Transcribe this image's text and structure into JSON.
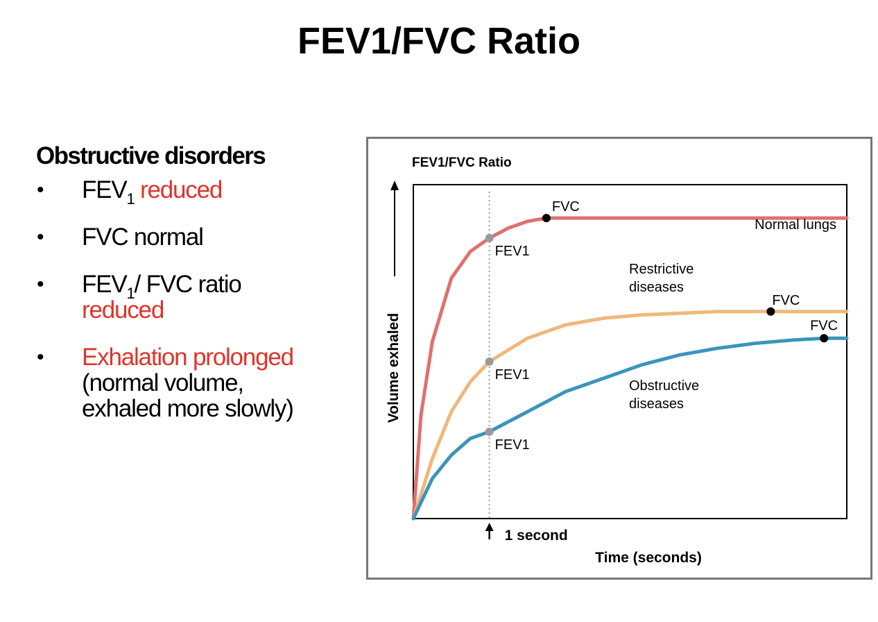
{
  "slide": {
    "title": "FEV1/FVC Ratio"
  },
  "bullets": {
    "heading": "Obstructive disorders",
    "items": [
      {
        "parts": [
          {
            "text": "FEV"
          },
          {
            "sub": "1"
          },
          {
            "text": " reduced",
            "red": true
          }
        ]
      },
      {
        "parts": [
          {
            "text": "FVC normal"
          }
        ]
      },
      {
        "parts": [
          {
            "text": "FEV"
          },
          {
            "sub": "1"
          },
          {
            "text": "/ FVC ratio "
          },
          {
            "text": "reduced",
            "red": true,
            "block": true
          }
        ]
      },
      {
        "parts": [
          {
            "text": "Exhalation prolonged",
            "red": true,
            "block": true
          },
          {
            "text": "(normal volume,",
            "block": true
          },
          {
            "text": "exhaled more slowly)",
            "block": true
          }
        ]
      }
    ]
  },
  "chart_data": {
    "type": "line",
    "title": "FEV1/FVC Ratio",
    "xlabel": "Time (seconds)",
    "ylabel": "Volume exhaled",
    "one_second_label": "1 second",
    "fev1_time": 1,
    "xlim": [
      0,
      5.7
    ],
    "ylim": [
      0,
      1
    ],
    "series": [
      {
        "name": "Normal lungs",
        "label_lines": [
          "Normal lungs"
        ],
        "color": "#e07070",
        "x": [
          0,
          0.1,
          0.25,
          0.5,
          0.75,
          1.0,
          1.25,
          1.5,
          1.75,
          2.0,
          2.5,
          3.0,
          4.0,
          5.0,
          5.7
        ],
        "y": [
          0,
          0.31,
          0.53,
          0.72,
          0.8,
          0.84,
          0.87,
          0.89,
          0.9,
          0.9,
          0.9,
          0.9,
          0.9,
          0.9,
          0.9
        ],
        "fev1": 0.84,
        "fvc_x": 1.75,
        "fvc_y": 0.9,
        "fvc_label": "FVC"
      },
      {
        "name": "Restrictive diseases",
        "label_lines": [
          "Restrictive",
          "diseases"
        ],
        "color": "#efb87a",
        "x": [
          0,
          0.25,
          0.5,
          0.75,
          1.0,
          1.5,
          2.0,
          2.5,
          3.0,
          3.5,
          4.0,
          4.7,
          5.7
        ],
        "y": [
          0,
          0.18,
          0.32,
          0.41,
          0.47,
          0.54,
          0.58,
          0.6,
          0.61,
          0.615,
          0.62,
          0.62,
          0.62
        ],
        "fev1": 0.47,
        "fvc_x": 4.7,
        "fvc_y": 0.62,
        "fvc_label": "FVC"
      },
      {
        "name": "Obstructive diseases",
        "label_lines": [
          "Obstructive",
          "diseases"
        ],
        "color": "#3a95ba",
        "x": [
          0,
          0.25,
          0.5,
          0.75,
          1.0,
          1.5,
          2.0,
          2.5,
          3.0,
          3.5,
          4.0,
          4.5,
          5.0,
          5.4,
          5.7
        ],
        "y": [
          0,
          0.12,
          0.19,
          0.24,
          0.26,
          0.32,
          0.38,
          0.42,
          0.46,
          0.49,
          0.51,
          0.525,
          0.535,
          0.54,
          0.54
        ],
        "fev1": 0.26,
        "fvc_x": 5.4,
        "fvc_y": 0.54,
        "fvc_label": "FVC"
      }
    ],
    "fev1_label": "FEV1"
  }
}
